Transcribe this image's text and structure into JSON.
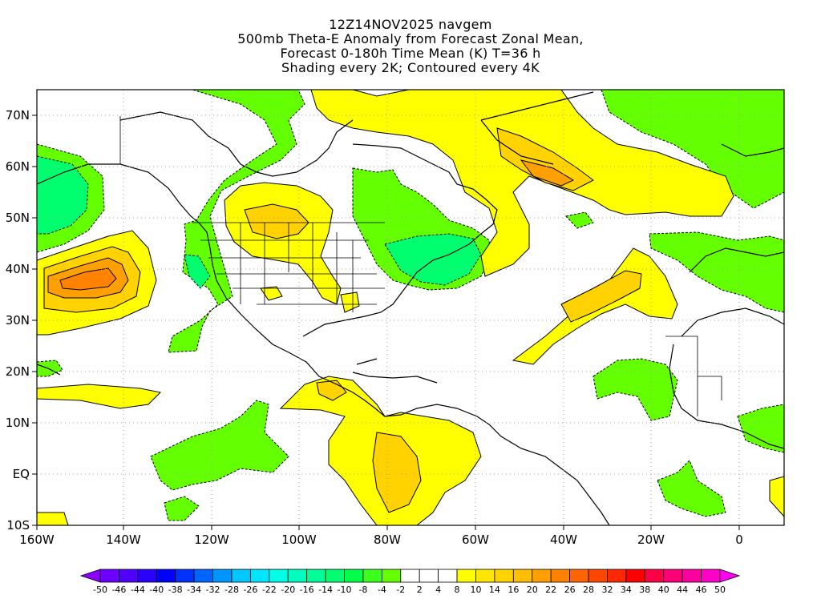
{
  "title": {
    "line1": "12Z14NOV2025 navgem",
    "line2": "500mb Theta-E Anomaly from Forecast Zonal Mean,",
    "line3": "Forecast 0-180h Time Mean (K) T=36 h",
    "line4": "Shading every 2K; Contoured every 4K"
  },
  "map": {
    "lat_labels": [
      "70N",
      "60N",
      "50N",
      "40N",
      "30N",
      "20N",
      "10N",
      "EQ",
      "10S"
    ],
    "lon_labels": [
      "160W",
      "140W",
      "120W",
      "100W",
      "80W",
      "60W",
      "40W",
      "20W",
      "0"
    ],
    "lon_range": [
      -160,
      10
    ],
    "lat_range": [
      -10,
      75
    ],
    "background": "#ffffff",
    "gridlines": "dotted",
    "coastline_color": "#000000"
  },
  "colorbar": {
    "labels": [
      "-50",
      "-46",
      "-44",
      "-40",
      "-38",
      "-34",
      "-32",
      "-28",
      "-26",
      "-22",
      "-20",
      "-16",
      "-14",
      "-10",
      "-8",
      "-4",
      "-2",
      "2",
      "4",
      "8",
      "10",
      "14",
      "16",
      "20",
      "22",
      "26",
      "28",
      "32",
      "34",
      "38",
      "40",
      "44",
      "46",
      "50"
    ],
    "colors": [
      "#8c00ff",
      "#6e00ff",
      "#5000ff",
      "#2a00ff",
      "#0000ff",
      "#0032ff",
      "#0064ff",
      "#0096ff",
      "#00c8ff",
      "#00e6ff",
      "#00ffe6",
      "#00ffbe",
      "#00ff96",
      "#00ff6e",
      "#00ff46",
      "#3cff1e",
      "#64ff00",
      "#ffffff",
      "#ffffff",
      "#ffffff",
      "#ffff00",
      "#ffe600",
      "#ffd200",
      "#ffbe00",
      "#ffa000",
      "#ff8200",
      "#ff6400",
      "#ff4600",
      "#ff2800",
      "#ff0000",
      "#ff0046",
      "#ff0078",
      "#ff00a0",
      "#ff00c8",
      "#ff00f0"
    ]
  }
}
